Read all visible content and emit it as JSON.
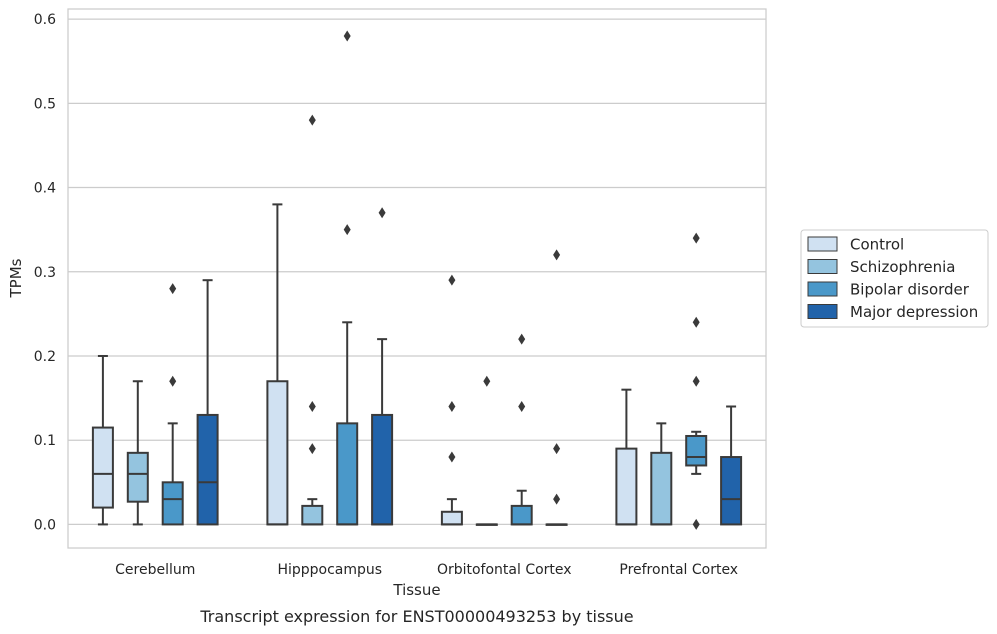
{
  "chart_data": {
    "type": "box",
    "caption": "Transcript expression for ENST00000493253 by tissue",
    "xlabel": "Tissue",
    "ylabel": "TPMs",
    "ylim": [
      -0.028,
      0.612
    ],
    "yticks": [
      0.0,
      0.1,
      0.2,
      0.3,
      0.4,
      0.5,
      0.6
    ],
    "ytick_labels": [
      "0.0",
      "0.1",
      "0.2",
      "0.3",
      "0.4",
      "0.5",
      "0.6"
    ],
    "grid": "horizontal",
    "legend_position": "right",
    "categories": [
      "Cerebellum",
      "Hipppocampus",
      "Orbitofontal Cortex",
      "Prefrontal Cortex"
    ],
    "series": [
      {
        "name": "Control",
        "color": "#d0e1f2",
        "boxes": [
          {
            "whislo": 0.0,
            "q1": 0.02,
            "med": 0.06,
            "q3": 0.115,
            "whishi": 0.2,
            "fliers": []
          },
          {
            "whislo": 0.0,
            "q1": 0.0,
            "med": 0.0,
            "q3": 0.17,
            "whishi": 0.38,
            "fliers": []
          },
          {
            "whislo": 0.0,
            "q1": 0.0,
            "med": 0.0,
            "q3": 0.015,
            "whishi": 0.03,
            "fliers": [
              0.08,
              0.14,
              0.29
            ]
          },
          {
            "whislo": 0.0,
            "q1": 0.0,
            "med": 0.0,
            "q3": 0.09,
            "whishi": 0.16,
            "fliers": []
          }
        ]
      },
      {
        "name": "Schizophrenia",
        "color": "#94c4df",
        "boxes": [
          {
            "whislo": 0.0,
            "q1": 0.027,
            "med": 0.06,
            "q3": 0.085,
            "whishi": 0.17,
            "fliers": []
          },
          {
            "whislo": 0.0,
            "q1": 0.0,
            "med": 0.0,
            "q3": 0.022,
            "whishi": 0.03,
            "fliers": [
              0.09,
              0.14,
              0.48
            ]
          },
          {
            "whislo": 0.0,
            "q1": 0.0,
            "med": 0.0,
            "q3": 0.0,
            "whishi": 0.0,
            "fliers": [
              0.17
            ]
          },
          {
            "whislo": 0.0,
            "q1": 0.0,
            "med": 0.0,
            "q3": 0.085,
            "whishi": 0.12,
            "fliers": []
          }
        ]
      },
      {
        "name": "Bipolar disorder",
        "color": "#4a98c9",
        "boxes": [
          {
            "whislo": 0.0,
            "q1": 0.0,
            "med": 0.03,
            "q3": 0.05,
            "whishi": 0.12,
            "fliers": [
              0.17,
              0.28
            ]
          },
          {
            "whislo": 0.0,
            "q1": 0.0,
            "med": 0.0,
            "q3": 0.12,
            "whishi": 0.24,
            "fliers": [
              0.35,
              0.58
            ]
          },
          {
            "whislo": 0.0,
            "q1": 0.0,
            "med": 0.0,
            "q3": 0.022,
            "whishi": 0.04,
            "fliers": [
              0.14,
              0.22
            ]
          },
          {
            "whislo": 0.06,
            "q1": 0.07,
            "med": 0.08,
            "q3": 0.105,
            "whishi": 0.11,
            "fliers": [
              0.0,
              0.17,
              0.24,
              0.34
            ]
          }
        ]
      },
      {
        "name": "Major depression",
        "color": "#2163aa",
        "boxes": [
          {
            "whislo": 0.0,
            "q1": 0.0,
            "med": 0.05,
            "q3": 0.13,
            "whishi": 0.29,
            "fliers": []
          },
          {
            "whislo": 0.0,
            "q1": 0.0,
            "med": 0.0,
            "q3": 0.13,
            "whishi": 0.22,
            "fliers": [
              0.37
            ]
          },
          {
            "whislo": 0.0,
            "q1": 0.0,
            "med": 0.0,
            "q3": 0.0,
            "whishi": 0.0,
            "fliers": [
              0.03,
              0.09,
              0.32
            ]
          },
          {
            "whislo": 0.0,
            "q1": 0.0,
            "med": 0.03,
            "q3": 0.08,
            "whishi": 0.14,
            "fliers": []
          }
        ]
      }
    ],
    "colors": {
      "box_edge": "#3a3a3a",
      "grid": "#cccccc",
      "axes_edge": "#cccccc",
      "text": "#262626"
    }
  }
}
